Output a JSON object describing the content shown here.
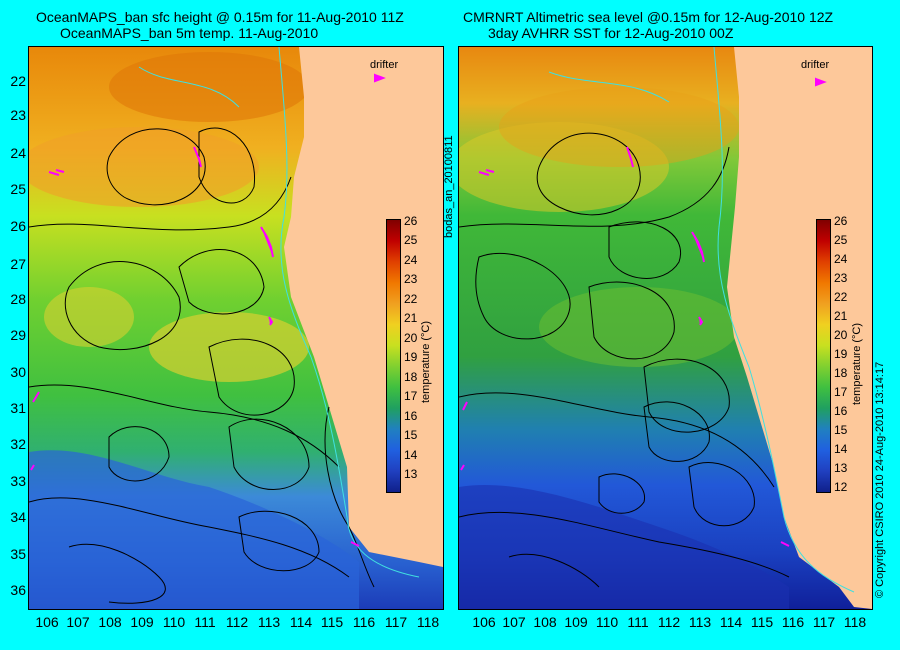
{
  "left_panel": {
    "title_line1": "OceanMAPS_ban sfc height @ 0.15m for 11-Aug-2010 11Z",
    "title_line2": "OceanMAPS_ban 5m temp. 11-Aug-2010",
    "colorbar_ticks": [
      "26",
      "25",
      "24",
      "23",
      "22",
      "21",
      "20",
      "19",
      "18",
      "17",
      "16",
      "15",
      "14",
      "13"
    ],
    "colorbar_title": "temperature (°C)",
    "drifter_label": "drifter"
  },
  "right_panel": {
    "title_line1": "CMRNRT Altimetric sea level  @0.15m  for 12-Aug-2010 12Z",
    "title_line2": "3day AVHRR SST for 12-Aug-2010 00Z",
    "colorbar_ticks": [
      "26",
      "25",
      "24",
      "23",
      "22",
      "21",
      "20",
      "19",
      "18",
      "17",
      "16",
      "15",
      "14",
      "13",
      "12"
    ],
    "colorbar_title": "temperature (°C)",
    "drifter_label": "drifter"
  },
  "latitude_labels": [
    "22",
    "23",
    "24",
    "25",
    "26",
    "27",
    "28",
    "29",
    "30",
    "31",
    "32",
    "33",
    "34",
    "35",
    "36"
  ],
  "longitude_labels": [
    "106",
    "107",
    "108",
    "109",
    "110",
    "111",
    "112",
    "113",
    "114",
    "115",
    "116",
    "117",
    "118"
  ],
  "run_label": "bodas_an_20100811",
  "copyright": "© Copyright CSIRO 2010    24-Aug-2010 13:14:17",
  "colors": {
    "background": "#00ffff",
    "land": "#fdc89a",
    "drifter": "#ff00ff",
    "contour": "#000000",
    "coast_contour": "#40e0e0"
  }
}
